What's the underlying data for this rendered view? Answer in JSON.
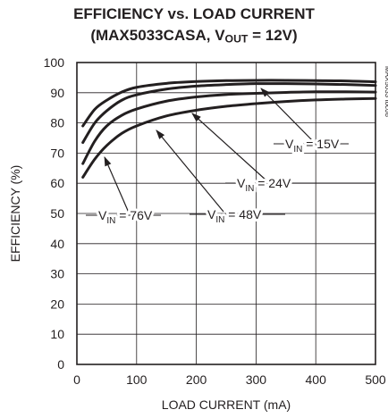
{
  "chart_data": {
    "type": "line",
    "title": "EFFICIENCY vs. LOAD CURRENT",
    "subtitle": {
      "prefix": "(MAX5033CASA, V",
      "sub": "OUT",
      "suffix": " = 12V)"
    },
    "xlabel": "LOAD CURRENT (mA)",
    "ylabel": "EFFICIENCY (%)",
    "xlim": [
      0,
      500
    ],
    "ylim": [
      0,
      100
    ],
    "xticks": [
      0,
      100,
      200,
      300,
      400,
      500
    ],
    "yticks": [
      0,
      10,
      20,
      30,
      40,
      50,
      60,
      70,
      80,
      90,
      100
    ],
    "grid": true,
    "figure_id": "MAX5033 toc08",
    "series": [
      {
        "name": "VIN = 15V",
        "label": {
          "v": "V",
          "sub": "IN",
          "rest": " = 15V"
        },
        "x": [
          10,
          30,
          50,
          75,
          100,
          150,
          200,
          250,
          300,
          350,
          400,
          450,
          500
        ],
        "y": [
          79,
          84.5,
          87.5,
          90.2,
          91.8,
          93.1,
          93.7,
          94,
          94.1,
          94.1,
          94,
          93.9,
          93.6
        ]
      },
      {
        "name": "VIN = 24V",
        "label": {
          "v": "V",
          "sub": "IN",
          "rest": " = 24V"
        },
        "x": [
          10,
          30,
          50,
          75,
          100,
          150,
          200,
          250,
          300,
          350,
          400,
          450,
          500
        ],
        "y": [
          73.5,
          80,
          84,
          87.5,
          89.3,
          91.2,
          92.2,
          92.7,
          93,
          93,
          92.9,
          92.7,
          92.4
        ]
      },
      {
        "name": "VIN = 48V",
        "label": {
          "v": "V",
          "sub": "IN",
          "rest": " = 48V"
        },
        "x": [
          10,
          30,
          50,
          75,
          100,
          150,
          200,
          250,
          300,
          350,
          400,
          450,
          500
        ],
        "y": [
          66.5,
          74,
          79,
          82.5,
          84.6,
          87.2,
          88.6,
          89.4,
          89.8,
          90.1,
          90.3,
          90.3,
          90.2
        ]
      },
      {
        "name": "VIN = 76V",
        "label": {
          "v": "V",
          "sub": "IN",
          "rest": " = 76V"
        },
        "x": [
          10,
          30,
          50,
          75,
          100,
          150,
          200,
          250,
          300,
          350,
          400,
          450,
          500
        ],
        "y": [
          62,
          68,
          72.5,
          76.5,
          79,
          82.3,
          84.2,
          85.5,
          86.4,
          87.1,
          87.6,
          87.9,
          88.1
        ]
      }
    ]
  }
}
